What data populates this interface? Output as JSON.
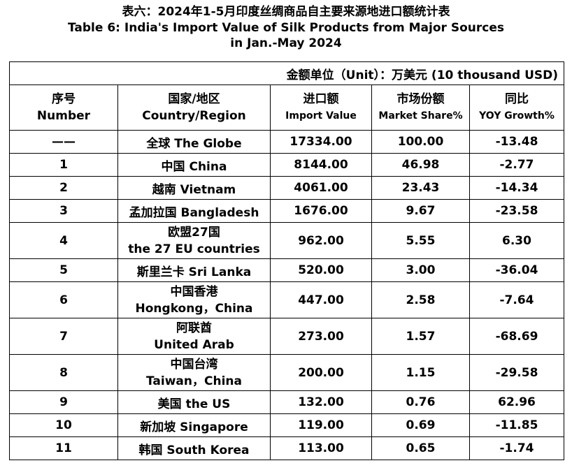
{
  "title": {
    "zh": "表六：2024年1-5月印度丝绸商品自主要来源地进口额统计表",
    "en_line1": "Table 6: India's Import Value of Silk Products from Major Sources",
    "en_line2": "in Jan.-May 2024"
  },
  "unit": "金额单位（Unit）：万美元 (10 thousand USD)",
  "headers": {
    "number_zh": "序号",
    "number_en": "Number",
    "country_zh": "国家/地区",
    "country_en": "Country/Region",
    "import_zh": "进口额",
    "import_en": "Import Value",
    "share_zh": "市场份额",
    "share_en": "Market Share%",
    "yoy_zh": "同比",
    "yoy_en": "YOY Growth%"
  },
  "rows": [
    {
      "no": "——",
      "country1": "全球 The Globe",
      "country2": "",
      "value": "17334.00",
      "share": "100.00",
      "yoy": "-13.48"
    },
    {
      "no": "1",
      "country1": "中国 China",
      "country2": "",
      "value": "8144.00",
      "share": "46.98",
      "yoy": "-2.77"
    },
    {
      "no": "2",
      "country1": "越南 Vietnam",
      "country2": "",
      "value": "4061.00",
      "share": "23.43",
      "yoy": "-14.34"
    },
    {
      "no": "3",
      "country1": "孟加拉国 Bangladesh",
      "country2": "",
      "value": "1676.00",
      "share": "9.67",
      "yoy": "-23.58"
    },
    {
      "no": "4",
      "country1": "欧盟27国",
      "country2": "the 27 EU countries",
      "value": "962.00",
      "share": "5.55",
      "yoy": "6.30"
    },
    {
      "no": "5",
      "country1": "斯里兰卡 Sri Lanka",
      "country2": "",
      "value": "520.00",
      "share": "3.00",
      "yoy": "-36.04"
    },
    {
      "no": "6",
      "country1": "中国香港",
      "country2": "Hongkong，China",
      "value": "447.00",
      "share": "2.58",
      "yoy": "-7.64"
    },
    {
      "no": "7",
      "country1": "阿联酋",
      "country2": "United Arab",
      "value": "273.00",
      "share": "1.57",
      "yoy": "-68.69"
    },
    {
      "no": "8",
      "country1": "中国台湾",
      "country2": "Taiwan，China",
      "value": "200.00",
      "share": "1.15",
      "yoy": "-29.58"
    },
    {
      "no": "9",
      "country1": "美国 the US",
      "country2": "",
      "value": "132.00",
      "share": "0.76",
      "yoy": "62.96"
    },
    {
      "no": "10",
      "country1": "新加坡 Singapore",
      "country2": "",
      "value": "119.00",
      "share": "0.69",
      "yoy": "-11.85"
    },
    {
      "no": "11",
      "country1": "韩国 South Korea",
      "country2": "",
      "value": "113.00",
      "share": "0.65",
      "yoy": "-1.74"
    }
  ]
}
